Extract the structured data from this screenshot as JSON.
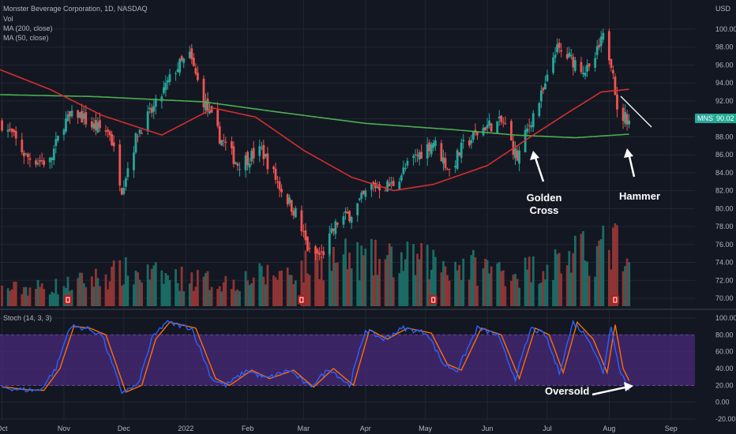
{
  "header": {
    "title": "Monster Beverage Corporation, 1D, NASDAQ",
    "vol_label": "Vol",
    "ma200_label": "MA (200, close)",
    "ma50_label": "MA (50, close)",
    "currency": "USD",
    "stoch_label": "Stoch (14, 3, 3)"
  },
  "colors": {
    "bg": "#131722",
    "grid": "#22262f",
    "text": "#b2b5be",
    "up": "#26a69a",
    "down": "#ef5350",
    "vol_up": "#1b6b64",
    "vol_down": "#8e3535",
    "ma200": "#4caf50",
    "ma50": "#d32f2f",
    "stoch_k": "#2962ff",
    "stoch_d": "#ff6d00",
    "stoch_band": "#4a2a7a"
  },
  "price_axis": {
    "ticks": [
      "100.00",
      "98.00",
      "96.00",
      "94.00",
      "92.00",
      "90.00",
      "88.00",
      "86.00",
      "84.00",
      "82.00",
      "80.00",
      "78.00",
      "76.00",
      "74.00",
      "72.00",
      "70.00"
    ]
  },
  "stoch_axis": {
    "ticks": [
      "100.00",
      "80.00",
      "60.00",
      "40.00",
      "20.00",
      "0.00",
      "-20.00"
    ]
  },
  "time_axis": {
    "ticks": [
      "Oct",
      "Nov",
      "Dec",
      "2022",
      "Feb",
      "Mar",
      "Apr",
      "May",
      "Jun",
      "Jul",
      "Aug",
      "Sep"
    ]
  },
  "last_price": {
    "symbol": "MNST",
    "value": "90.02"
  },
  "annotations": {
    "golden_cross": [
      "Golden",
      "Cross"
    ],
    "hammer": "Hammer",
    "oversold": "Oversold"
  },
  "chart_data": {
    "type": "candlestick",
    "title": "Monster Beverage Corporation, 1D, NASDAQ",
    "x_range": [
      "2021-09-30",
      "2022-08-15"
    ],
    "price_range": [
      69,
      101
    ],
    "stoch_range": [
      -20,
      105
    ],
    "close_anchors": [
      [
        "2021-10-01",
        89.5
      ],
      [
        "2021-10-06",
        88.2
      ],
      [
        "2021-10-13",
        85.8
      ],
      [
        "2021-10-20",
        85.3
      ],
      [
        "2021-10-25",
        85.2
      ],
      [
        "2021-11-01",
        89.6
      ],
      [
        "2021-11-08",
        90.6
      ],
      [
        "2021-11-15",
        89.2
      ],
      [
        "2021-11-24",
        88.5
      ],
      [
        "2021-11-30",
        82.3
      ],
      [
        "2021-12-08",
        88.5
      ],
      [
        "2021-12-17",
        91.5
      ],
      [
        "2021-12-27",
        95.6
      ],
      [
        "2022-01-03",
        97.0
      ],
      [
        "2022-01-10",
        92.0
      ],
      [
        "2022-01-18",
        88.0
      ],
      [
        "2022-01-27",
        85.0
      ],
      [
        "2022-02-08",
        86.5
      ],
      [
        "2022-02-17",
        82.5
      ],
      [
        "2022-02-25",
        79.5
      ],
      [
        "2022-03-04",
        75.0
      ],
      [
        "2022-03-10",
        74.8
      ],
      [
        "2022-03-18",
        78.5
      ],
      [
        "2022-03-25",
        79.5
      ],
      [
        "2022-04-04",
        82.5
      ],
      [
        "2022-04-14",
        82.6
      ],
      [
        "2022-04-25",
        85.5
      ],
      [
        "2022-05-05",
        87.5
      ],
      [
        "2022-05-13",
        84.2
      ],
      [
        "2022-05-20",
        87.0
      ],
      [
        "2022-05-31",
        89.2
      ],
      [
        "2022-06-09",
        89.6
      ],
      [
        "2022-06-16",
        85.6
      ],
      [
        "2022-06-23",
        90.0
      ],
      [
        "2022-06-30",
        93.5
      ],
      [
        "2022-07-05",
        97.8
      ],
      [
        "2022-07-14",
        96.5
      ],
      [
        "2022-07-22",
        95.2
      ],
      [
        "2022-07-29",
        99.0
      ],
      [
        "2022-08-03",
        95.8
      ],
      [
        "2022-08-05",
        90.5
      ],
      [
        "2022-08-11",
        90.02
      ]
    ],
    "ma200_anchors": [
      [
        "2021-09-30",
        92.7
      ],
      [
        "2021-11-15",
        92.5
      ],
      [
        "2022-01-10",
        91.9
      ],
      [
        "2022-02-15",
        90.8
      ],
      [
        "2022-04-01",
        89.5
      ],
      [
        "2022-05-15",
        88.8
      ],
      [
        "2022-06-15",
        88.2
      ],
      [
        "2022-07-15",
        87.9
      ],
      [
        "2022-08-11",
        88.3
      ]
    ],
    "ma50_anchors": [
      [
        "2021-09-30",
        95.5
      ],
      [
        "2021-10-25",
        93.3
      ],
      [
        "2021-11-20",
        90.4
      ],
      [
        "2021-12-20",
        88.2
      ],
      [
        "2022-01-15",
        91.2
      ],
      [
        "2022-02-05",
        90.2
      ],
      [
        "2022-03-01",
        86.5
      ],
      [
        "2022-03-25",
        83.5
      ],
      [
        "2022-04-15",
        82.0
      ],
      [
        "2022-05-05",
        82.7
      ],
      [
        "2022-06-01",
        84.8
      ],
      [
        "2022-06-22",
        87.9
      ],
      [
        "2022-07-10",
        90.5
      ],
      [
        "2022-07-28",
        93.0
      ],
      [
        "2022-08-11",
        93.3
      ]
    ],
    "stoch_k_anchors": [
      [
        "2021-10-01",
        18
      ],
      [
        "2021-10-10",
        15
      ],
      [
        "2021-10-20",
        14
      ],
      [
        "2021-10-28",
        40
      ],
      [
        "2021-11-04",
        90
      ],
      [
        "2021-11-12",
        88
      ],
      [
        "2021-11-20",
        80
      ],
      [
        "2021-11-30",
        12
      ],
      [
        "2021-12-08",
        20
      ],
      [
        "2021-12-15",
        75
      ],
      [
        "2021-12-22",
        95
      ],
      [
        "2022-01-04",
        88
      ],
      [
        "2022-01-14",
        28
      ],
      [
        "2022-01-21",
        20
      ],
      [
        "2022-02-01",
        38
      ],
      [
        "2022-02-10",
        28
      ],
      [
        "2022-02-22",
        38
      ],
      [
        "2022-03-04",
        18
      ],
      [
        "2022-03-14",
        40
      ],
      [
        "2022-03-24",
        20
      ],
      [
        "2022-04-01",
        86
      ],
      [
        "2022-04-10",
        75
      ],
      [
        "2022-04-20",
        88
      ],
      [
        "2022-05-02",
        82
      ],
      [
        "2022-05-10",
        45
      ],
      [
        "2022-05-17",
        38
      ],
      [
        "2022-05-27",
        88
      ],
      [
        "2022-06-06",
        80
      ],
      [
        "2022-06-15",
        28
      ],
      [
        "2022-06-23",
        88
      ],
      [
        "2022-06-30",
        80
      ],
      [
        "2022-07-07",
        35
      ],
      [
        "2022-07-14",
        95
      ],
      [
        "2022-07-22",
        75
      ],
      [
        "2022-07-29",
        35
      ],
      [
        "2022-08-02",
        92
      ],
      [
        "2022-08-06",
        40
      ],
      [
        "2022-08-11",
        16
      ]
    ],
    "volume_anchors": [
      [
        "2021-10-01",
        0.25
      ],
      [
        "2021-11-01",
        0.3
      ],
      [
        "2021-11-30",
        0.5
      ],
      [
        "2022-01-20",
        0.35
      ],
      [
        "2022-03-01",
        0.55
      ],
      [
        "2022-03-08",
        0.7
      ],
      [
        "2022-05-05",
        0.65
      ],
      [
        "2022-06-17",
        0.5
      ],
      [
        "2022-08-05",
        0.9
      ],
      [
        "2022-08-11",
        0.45
      ]
    ]
  }
}
